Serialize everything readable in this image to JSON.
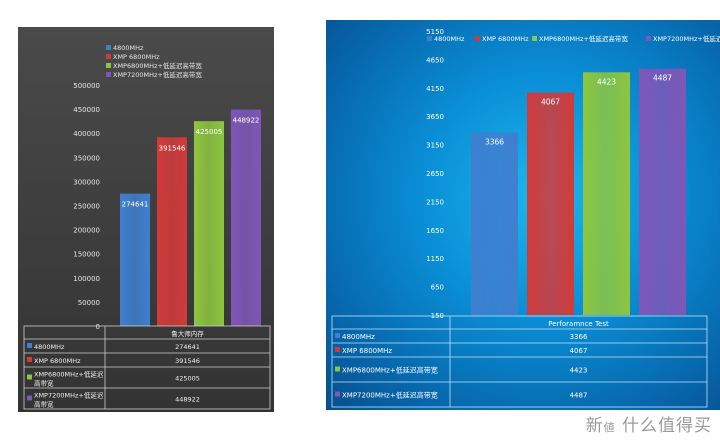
{
  "chart_data": [
    {
      "type": "bar",
      "categories": [
        "鲁大师内存"
      ],
      "series": [
        {
          "name": "4800MHz",
          "values": [
            274641
          ],
          "color": "#3f7fd0"
        },
        {
          "name": "XMP 6800MHz",
          "values": [
            391546
          ],
          "color": "#d23a3a"
        },
        {
          "name": "XMP6800MHz+低延迟高带宽",
          "values": [
            425005
          ],
          "color": "#8dc63f"
        },
        {
          "name": "XMP7200MHz+低延迟高带宽",
          "values": [
            448922
          ],
          "color": "#7e57b8"
        }
      ],
      "yticks": [
        "0",
        "50000",
        "100000",
        "150000",
        "200000",
        "250000",
        "300000",
        "350000",
        "400000",
        "450000",
        "500000"
      ],
      "ylim": [
        0,
        500000
      ],
      "legend": "top",
      "table": {
        "header": "鲁大师内存",
        "rows": [
          {
            "label": "4800MHz",
            "value": "274641"
          },
          {
            "label": "XMP 6800MHz",
            "value": "391546"
          },
          {
            "label": "XMP6800MHz+低延迟高带宽",
            "value": "425005"
          },
          {
            "label": "XMP7200MHz+低延迟高带宽",
            "value": "448922"
          }
        ]
      }
    },
    {
      "type": "bar",
      "categories": [
        "Perforamnce Test"
      ],
      "series": [
        {
          "name": "4800MHz",
          "values": [
            3366
          ],
          "color": "#3f7fd0"
        },
        {
          "name": "XMP 6800MHz",
          "values": [
            4067
          ],
          "color": "#d23a3a"
        },
        {
          "name": "XMP6800MHz+低延迟高带宽",
          "values": [
            4423
          ],
          "color": "#8dc63f"
        },
        {
          "name": "XMP7200MHz+低延迟高带宽",
          "values": [
            4487
          ],
          "color": "#7e57b8"
        }
      ],
      "yticks": [
        "150",
        "650",
        "1150",
        "1650",
        "2150",
        "2650",
        "3150",
        "3650",
        "4150",
        "4650",
        "5150"
      ],
      "ylim": [
        150,
        5150
      ],
      "legend": "top",
      "table": {
        "header": "Perforamnce Test",
        "rows": [
          {
            "label": "4800MHz",
            "value": "3366"
          },
          {
            "label": "XMP 6800MHz",
            "value": "4067"
          },
          {
            "label": "XMP6800MHz+低延迟高带宽",
            "value": "4423"
          },
          {
            "label": "XMP7200MHz+低延迟高带宽",
            "value": "4487"
          }
        ]
      }
    }
  ],
  "watermark": "新 值 什么值得买"
}
